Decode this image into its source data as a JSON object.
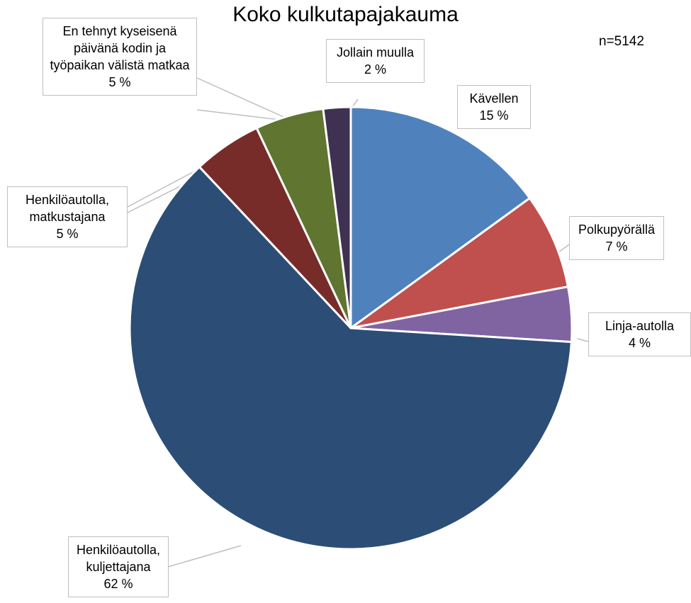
{
  "chart_data": {
    "type": "pie",
    "title": "Koko kulkutapajakauma",
    "note": "n=5142",
    "categories": [
      "Kävellen",
      "Polkupyörällä",
      "Linja-autolla",
      "Henkilöautolla, kuljettajana",
      "Henkilöautolla, matkustajana",
      "En tehnyt kyseisenä päivänä kodin ja työpaikan välistä matkaa",
      "Jollain muulla"
    ],
    "values": [
      15,
      7,
      4,
      62,
      5,
      5,
      2
    ],
    "value_labels": [
      "15 %",
      "7 %",
      "4 %",
      "62 %",
      "5 %",
      "5 %",
      "2 %"
    ],
    "colors": [
      "#4f81bd",
      "#c0504d",
      "#8064a2",
      "#2c4d75",
      "#772c2a",
      "#5f7530",
      "#3f3151"
    ]
  }
}
